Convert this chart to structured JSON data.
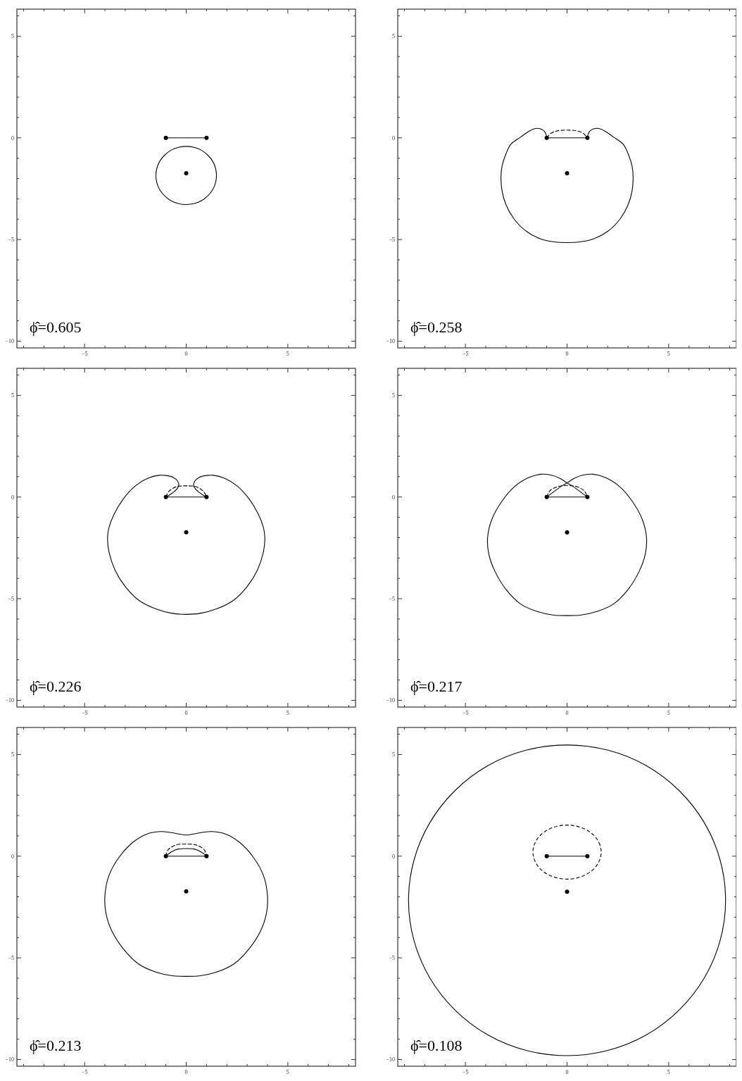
{
  "chart_data": [
    {
      "type": "line",
      "xlim": [
        -8.33,
        8.33
      ],
      "ylim": [
        -10.33,
        6.33
      ],
      "xticks": [
        {
          "value": -8,
          "label": null
        },
        {
          "value": -7,
          "label": null
        },
        {
          "value": -6,
          "label": null
        },
        -5,
        {
          "value": -4,
          "label": null
        },
        {
          "value": -3,
          "label": null
        },
        {
          "value": -2,
          "label": null
        },
        {
          "value": -1,
          "label": null
        },
        0,
        {
          "value": 1,
          "label": null
        },
        {
          "value": 2,
          "label": null
        },
        {
          "value": 3,
          "label": null
        },
        {
          "value": 4,
          "label": null
        },
        5,
        {
          "value": 6,
          "label": null
        },
        {
          "value": 7,
          "label": null
        },
        {
          "value": 8,
          "label": null
        }
      ],
      "yticks": [
        -10,
        {
          "value": -9,
          "label": null
        },
        {
          "value": -8,
          "label": null
        },
        {
          "value": -7,
          "label": null
        },
        {
          "value": -6,
          "label": null
        },
        -5,
        {
          "value": -4,
          "label": null
        },
        {
          "value": -3,
          "label": null
        },
        {
          "value": -2,
          "label": null
        },
        {
          "value": -1,
          "label": null
        },
        0,
        {
          "value": 1,
          "label": null
        },
        {
          "value": 2,
          "label": null
        },
        {
          "value": 3,
          "label": null
        },
        {
          "value": 4,
          "label": null
        },
        5,
        {
          "value": 6,
          "label": null
        }
      ],
      "series": [
        {
          "color": "#000000",
          "marker": "circle",
          "line_style": "solid",
          "x": [
            -1,
            1
          ],
          "values": [
            0,
            0
          ]
        },
        {
          "type": "scatter",
          "color": "#000000",
          "marker": "circle",
          "x": [
            0
          ],
          "values": [
            -1.74
          ]
        }
      ],
      "annotations": [
        "ϕ̂=0.605"
      ]
    },
    {
      "type": "line",
      "xlim": [
        -8.33,
        8.33
      ],
      "ylim": [
        -10.33,
        6.33
      ],
      "xticks": [
        {
          "value": -8,
          "label": null
        },
        {
          "value": -7,
          "label": null
        },
        {
          "value": -6,
          "label": null
        },
        -5,
        {
          "value": -4,
          "label": null
        },
        {
          "value": -3,
          "label": null
        },
        {
          "value": -2,
          "label": null
        },
        {
          "value": -1,
          "label": null
        },
        0,
        {
          "value": 1,
          "label": null
        },
        {
          "value": 2,
          "label": null
        },
        {
          "value": 3,
          "label": null
        },
        {
          "value": 4,
          "label": null
        },
        5,
        {
          "value": 6,
          "label": null
        },
        {
          "value": 7,
          "label": null
        },
        {
          "value": 8,
          "label": null
        }
      ],
      "yticks": [
        -10,
        {
          "value": -9,
          "label": null
        },
        {
          "value": -8,
          "label": null
        },
        {
          "value": -7,
          "label": null
        },
        {
          "value": -6,
          "label": null
        },
        -5,
        {
          "value": -4,
          "label": null
        },
        {
          "value": -3,
          "label": null
        },
        {
          "value": -2,
          "label": null
        },
        {
          "value": -1,
          "label": null
        },
        0,
        {
          "value": 1,
          "label": null
        },
        {
          "value": 2,
          "label": null
        },
        {
          "value": 3,
          "label": null
        },
        {
          "value": 4,
          "label": null
        },
        5,
        {
          "value": 6,
          "label": null
        }
      ],
      "series": [
        {
          "color": "#000000",
          "marker": "circle",
          "line_style": "solid",
          "x": [
            -1,
            1
          ],
          "values": [
            0,
            0
          ]
        },
        {
          "color": "#000000",
          "marker": "none",
          "line_style": "solid",
          "x": [
            -1,
            -1.03,
            -1.12,
            -1.3,
            -1.56,
            -1.85,
            -2.3,
            -2.76,
            -3.05,
            -3.2,
            -3.25,
            -3.2,
            -3.0,
            -2.6,
            -2.0,
            -1.3,
            -0.6,
            0,
            0.6,
            1.3,
            2.0,
            2.6,
            3.0,
            3.2,
            3.25,
            3.2,
            3.05,
            2.76,
            2.3,
            1.85,
            1.56,
            1.3,
            1.12,
            1.03,
            1
          ],
          "values": [
            0,
            0.15,
            0.33,
            0.44,
            0.46,
            0.34,
            0.03,
            -0.31,
            -0.9,
            -1.4,
            -1.91,
            -2.6,
            -3.3,
            -4.0,
            -4.6,
            -4.97,
            -5.12,
            -5.15,
            -5.12,
            -4.97,
            -4.6,
            -4.0,
            -3.3,
            -2.6,
            -1.91,
            -1.4,
            -0.9,
            -0.31,
            0.03,
            0.34,
            0.46,
            0.44,
            0.33,
            0.15,
            0
          ]
        },
        {
          "color": "#000000",
          "marker": "none",
          "line_style": "dashed",
          "x": [
            -1,
            -0.8,
            -0.5,
            0,
            0.5,
            0.8,
            1
          ],
          "values": [
            0,
            0.22,
            0.34,
            0.38,
            0.34,
            0.22,
            0
          ]
        },
        {
          "type": "scatter",
          "color": "#000000",
          "marker": "circle",
          "x": [
            0
          ],
          "values": [
            -1.74
          ]
        }
      ],
      "annotations": [
        "ϕ̂=0.258"
      ]
    },
    {
      "type": "line",
      "xlim": [
        -8.33,
        8.33
      ],
      "ylim": [
        -10.33,
        6.33
      ],
      "xticks": [
        {
          "value": -8,
          "label": null
        },
        {
          "value": -7,
          "label": null
        },
        {
          "value": -6,
          "label": null
        },
        -5,
        {
          "value": -4,
          "label": null
        },
        {
          "value": -3,
          "label": null
        },
        {
          "value": -2,
          "label": null
        },
        {
          "value": -1,
          "label": null
        },
        0,
        {
          "value": 1,
          "label": null
        },
        {
          "value": 2,
          "label": null
        },
        {
          "value": 3,
          "label": null
        },
        {
          "value": 4,
          "label": null
        },
        5,
        {
          "value": 6,
          "label": null
        },
        {
          "value": 7,
          "label": null
        },
        {
          "value": 8,
          "label": null
        }
      ],
      "yticks": [
        -10,
        {
          "value": -9,
          "label": null
        },
        {
          "value": -8,
          "label": null
        },
        {
          "value": -7,
          "label": null
        },
        {
          "value": -6,
          "label": null
        },
        -5,
        {
          "value": -4,
          "label": null
        },
        {
          "value": -3,
          "label": null
        },
        {
          "value": -2,
          "label": null
        },
        {
          "value": -1,
          "label": null
        },
        0,
        {
          "value": 1,
          "label": null
        },
        {
          "value": 2,
          "label": null
        },
        {
          "value": 3,
          "label": null
        },
        {
          "value": 4,
          "label": null
        },
        5,
        {
          "value": 6,
          "label": null
        }
      ],
      "series": [
        {
          "color": "#000000",
          "marker": "circle",
          "line_style": "solid",
          "x": [
            -1,
            1
          ],
          "values": [
            0,
            0
          ]
        },
        {
          "color": "#000000",
          "marker": "none",
          "line_style": "solid",
          "x": [
            -1,
            -0.75,
            -0.5,
            -0.37,
            -0.42,
            -0.65,
            -1.0,
            -1.33,
            -1.9,
            -2.5,
            -3.1,
            -3.55,
            -3.8,
            -3.87,
            -3.8,
            -3.5,
            -3.0,
            -2.3,
            -1.5,
            -0.7,
            0,
            0.7,
            1.5,
            2.3,
            3.0,
            3.5,
            3.8,
            3.87,
            3.8,
            3.55,
            3.1,
            2.5,
            1.9,
            1.33,
            1.0,
            0.65,
            0.42,
            0.37,
            0.5,
            0.75,
            1
          ],
          "values": [
            0,
            0.15,
            0.35,
            0.55,
            0.78,
            0.97,
            1.06,
            1.07,
            0.92,
            0.55,
            -0.1,
            -0.85,
            -1.5,
            -1.99,
            -2.7,
            -3.6,
            -4.4,
            -5.1,
            -5.5,
            -5.72,
            -5.77,
            -5.72,
            -5.5,
            -5.1,
            -4.4,
            -3.6,
            -2.7,
            -1.99,
            -1.5,
            -0.85,
            -0.1,
            0.55,
            0.92,
            1.07,
            1.06,
            0.97,
            0.78,
            0.55,
            0.35,
            0.15,
            0
          ]
        },
        {
          "color": "#000000",
          "marker": "none",
          "line_style": "dashed",
          "x": [
            -1,
            -0.85,
            -0.5,
            0,
            0.5,
            0.85,
            1
          ],
          "values": [
            0,
            0.28,
            0.5,
            0.55,
            0.5,
            0.28,
            0
          ]
        },
        {
          "type": "scatter",
          "color": "#000000",
          "marker": "circle",
          "x": [
            0
          ],
          "values": [
            -1.73
          ]
        }
      ],
      "annotations": [
        "ϕ̂=0.226"
      ]
    },
    {
      "type": "line",
      "xlim": [
        -8.33,
        8.33
      ],
      "ylim": [
        -10.33,
        6.33
      ],
      "xticks": [
        {
          "value": -8,
          "label": null
        },
        {
          "value": -7,
          "label": null
        },
        {
          "value": -6,
          "label": null
        },
        -5,
        {
          "value": -4,
          "label": null
        },
        {
          "value": -3,
          "label": null
        },
        {
          "value": -2,
          "label": null
        },
        {
          "value": -1,
          "label": null
        },
        0,
        {
          "value": 1,
          "label": null
        },
        {
          "value": 2,
          "label": null
        },
        {
          "value": 3,
          "label": null
        },
        {
          "value": 4,
          "label": null
        },
        5,
        {
          "value": 6,
          "label": null
        },
        {
          "value": 7,
          "label": null
        },
        {
          "value": 8,
          "label": null
        }
      ],
      "yticks": [
        -10,
        {
          "value": -9,
          "label": null
        },
        {
          "value": -8,
          "label": null
        },
        {
          "value": -7,
          "label": null
        },
        {
          "value": -6,
          "label": null
        },
        -5,
        {
          "value": -4,
          "label": null
        },
        {
          "value": -3,
          "label": null
        },
        {
          "value": -2,
          "label": null
        },
        {
          "value": -1,
          "label": null
        },
        0,
        {
          "value": 1,
          "label": null
        },
        {
          "value": 2,
          "label": null
        },
        {
          "value": 3,
          "label": null
        },
        {
          "value": 4,
          "label": null
        },
        5,
        {
          "value": 6,
          "label": null
        }
      ],
      "series": [
        {
          "color": "#000000",
          "marker": "circle",
          "line_style": "solid",
          "x": [
            -1,
            1
          ],
          "values": [
            0,
            0
          ]
        },
        {
          "color": "#000000",
          "marker": "none",
          "line_style": "solid",
          "x": [
            -1,
            -0.6,
            -0.25,
            0,
            0.35,
            0.8,
            1.28,
            1.9,
            2.6,
            3.2,
            3.7,
            3.91,
            3.85,
            3.55,
            3.0,
            2.3,
            1.5,
            0.7,
            0,
            -0.7,
            -1.5,
            -2.3,
            -3.0,
            -3.55,
            -3.85,
            -3.91,
            -3.7,
            -3.2,
            -2.6,
            -1.9,
            -1.28,
            -0.8,
            -0.35,
            0,
            0.25,
            0.6,
            1
          ],
          "values": [
            0,
            0.3,
            0.55,
            0.69,
            0.92,
            1.08,
            1.12,
            0.95,
            0.5,
            -0.2,
            -1.1,
            -2.0,
            -2.8,
            -3.65,
            -4.55,
            -5.25,
            -5.62,
            -5.8,
            -5.83,
            -5.8,
            -5.62,
            -5.25,
            -4.55,
            -3.65,
            -2.8,
            -2.0,
            -1.1,
            -0.2,
            0.5,
            0.95,
            1.12,
            1.08,
            0.92,
            0.69,
            0.55,
            0.3,
            0
          ]
        },
        {
          "color": "#000000",
          "marker": "none",
          "line_style": "dashed",
          "x": [
            -1,
            -0.85,
            -0.5,
            0,
            0.5,
            0.85,
            1
          ],
          "values": [
            0,
            0.3,
            0.5,
            0.57,
            0.5,
            0.3,
            0
          ]
        },
        {
          "type": "scatter",
          "color": "#000000",
          "marker": "circle",
          "x": [
            0
          ],
          "values": [
            -1.74
          ]
        }
      ],
      "annotations": [
        "ϕ̂=0.217"
      ]
    },
    {
      "type": "line",
      "xlim": [
        -8.33,
        8.33
      ],
      "ylim": [
        -10.33,
        6.33
      ],
      "xticks": [
        {
          "value": -8,
          "label": null
        },
        {
          "value": -7,
          "label": null
        },
        {
          "value": -6,
          "label": null
        },
        -5,
        {
          "value": -4,
          "label": null
        },
        {
          "value": -3,
          "label": null
        },
        {
          "value": -2,
          "label": null
        },
        {
          "value": -1,
          "label": null
        },
        0,
        {
          "value": 1,
          "label": null
        },
        {
          "value": 2,
          "label": null
        },
        {
          "value": 3,
          "label": null
        },
        {
          "value": 4,
          "label": null
        },
        5,
        {
          "value": 6,
          "label": null
        },
        {
          "value": 7,
          "label": null
        },
        {
          "value": 8,
          "label": null
        }
      ],
      "yticks": [
        -10,
        {
          "value": -9,
          "label": null
        },
        {
          "value": -8,
          "label": null
        },
        {
          "value": -7,
          "label": null
        },
        {
          "value": -6,
          "label": null
        },
        -5,
        {
          "value": -4,
          "label": null
        },
        {
          "value": -3,
          "label": null
        },
        {
          "value": -2,
          "label": null
        },
        {
          "value": -1,
          "label": null
        },
        0,
        {
          "value": 1,
          "label": null
        },
        {
          "value": 2,
          "label": null
        },
        {
          "value": 3,
          "label": null
        },
        {
          "value": 4,
          "label": null
        },
        5,
        {
          "value": 6,
          "label": null
        }
      ],
      "series": [
        {
          "color": "#000000",
          "marker": "circle",
          "line_style": "solid",
          "x": [
            -1,
            1
          ],
          "values": [
            0,
            0
          ]
        },
        {
          "color": "#000000",
          "marker": "none",
          "line_style": "solid",
          "x": [
            -1,
            -0.75,
            -0.4,
            0,
            0.4,
            0.75,
            1
          ],
          "values": [
            0,
            0.2,
            0.35,
            0.37,
            0.35,
            0.2,
            0
          ]
        },
        {
          "color": "#000000",
          "marker": "none",
          "line_style": "dashed",
          "x": [
            -1,
            -0.9,
            -0.5,
            0,
            0.5,
            0.9,
            1
          ],
          "values": [
            0,
            0.3,
            0.55,
            0.6,
            0.55,
            0.3,
            0
          ]
        },
        {
          "type": "scatter",
          "color": "#000000",
          "marker": "circle",
          "x": [
            0
          ],
          "values": [
            -1.73
          ]
        }
      ],
      "annotations": [
        "ϕ̂=0.213"
      ]
    },
    {
      "type": "line",
      "xlim": [
        -8.33,
        8.33
      ],
      "ylim": [
        -10.33,
        6.33
      ],
      "xticks": [
        {
          "value": -8,
          "label": null
        },
        {
          "value": -7,
          "label": null
        },
        {
          "value": -6,
          "label": null
        },
        -5,
        {
          "value": -4,
          "label": null
        },
        {
          "value": -3,
          "label": null
        },
        {
          "value": -2,
          "label": null
        },
        {
          "value": -1,
          "label": null
        },
        0,
        {
          "value": 1,
          "label": null
        },
        {
          "value": 2,
          "label": null
        },
        {
          "value": 3,
          "label": null
        },
        {
          "value": 4,
          "label": null
        },
        5,
        {
          "value": 6,
          "label": null
        },
        {
          "value": 7,
          "label": null
        },
        {
          "value": 8,
          "label": null
        }
      ],
      "yticks": [
        -10,
        {
          "value": -9,
          "label": null
        },
        {
          "value": -8,
          "label": null
        },
        {
          "value": -7,
          "label": null
        },
        {
          "value": -6,
          "label": null
        },
        -5,
        {
          "value": -4,
          "label": null
        },
        {
          "value": -3,
          "label": null
        },
        {
          "value": -2,
          "label": null
        },
        {
          "value": -1,
          "label": null
        },
        0,
        {
          "value": 1,
          "label": null
        },
        {
          "value": 2,
          "label": null
        },
        {
          "value": 3,
          "label": null
        },
        {
          "value": 4,
          "label": null
        },
        5,
        {
          "value": 6,
          "label": null
        }
      ],
      "series": [
        {
          "color": "#000000",
          "marker": "circle",
          "line_style": "solid",
          "x": [
            -1,
            1
          ],
          "values": [
            0,
            0
          ]
        },
        {
          "type": "scatter",
          "color": "#000000",
          "marker": "circle",
          "x": [
            0
          ],
          "values": [
            -1.75
          ]
        }
      ],
      "annotations": [
        "ϕ̂=0.108"
      ]
    }
  ]
}
